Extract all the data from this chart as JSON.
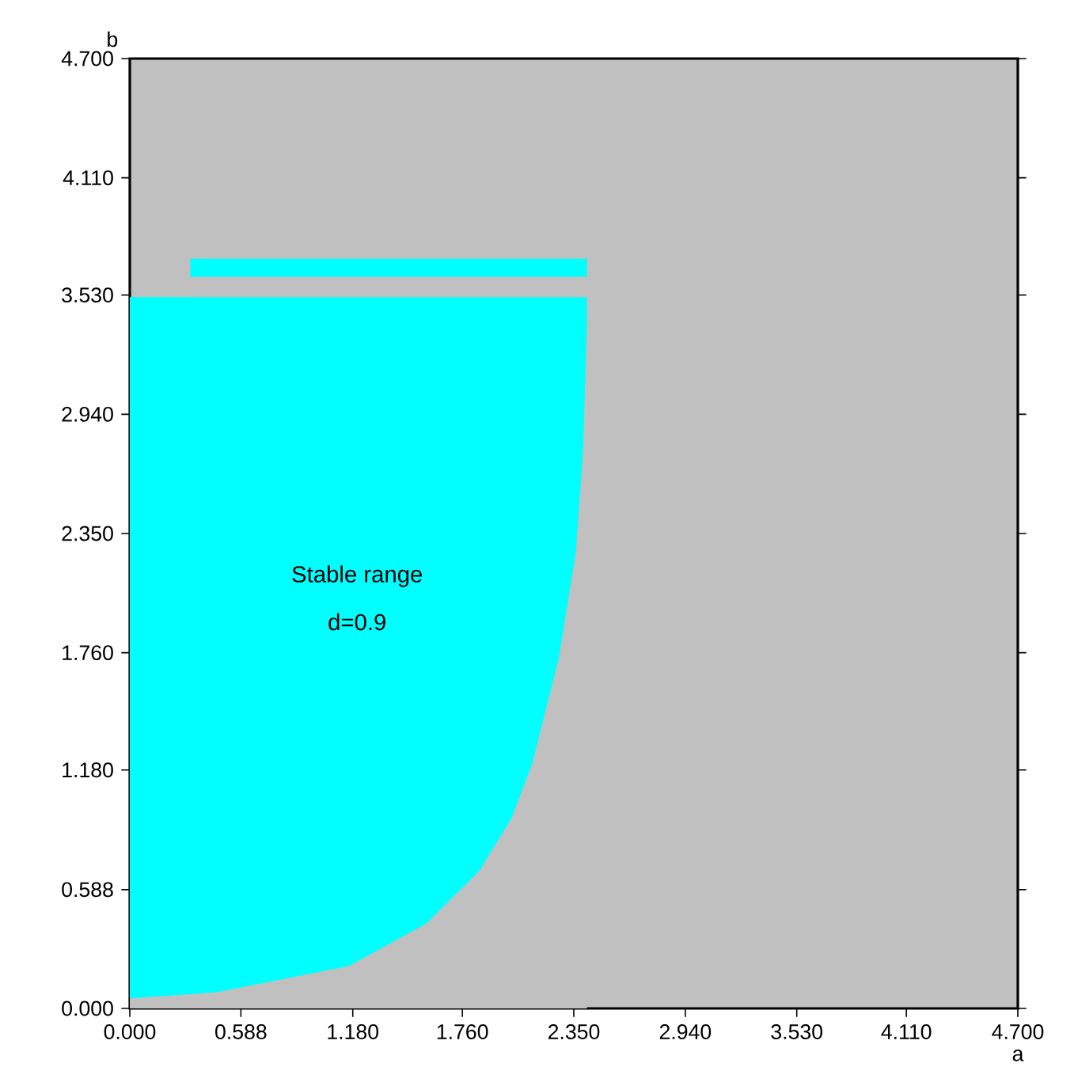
{
  "chart_data": {
    "type": "area",
    "stacked": true,
    "xlabel": "a",
    "ylabel": "b",
    "xlim": [
      0,
      4.7
    ],
    "ylim": [
      0,
      4.7
    ],
    "xticks": [
      {
        "value": 0,
        "label": "0.000"
      },
      {
        "value": 0.588,
        "label": "0.588"
      },
      {
        "value": 1.18,
        "label": "1.180"
      },
      {
        "value": 1.76,
        "label": "1.760"
      },
      {
        "value": 2.35,
        "label": "2.350"
      },
      {
        "value": 2.94,
        "label": "2.940"
      },
      {
        "value": 3.53,
        "label": "3.530"
      },
      {
        "value": 4.11,
        "label": "4.110"
      },
      {
        "value": 4.7,
        "label": "4.700"
      }
    ],
    "yticks": [
      {
        "value": 0,
        "label": "0.000"
      },
      {
        "value": 0.588,
        "label": "0.588"
      },
      {
        "value": 1.18,
        "label": "1.180"
      },
      {
        "value": 1.76,
        "label": "1.760"
      },
      {
        "value": 2.35,
        "label": "2.350"
      },
      {
        "value": 2.94,
        "label": "2.940"
      },
      {
        "value": 3.53,
        "label": "3.530"
      },
      {
        "value": 4.11,
        "label": "4.110"
      },
      {
        "value": 4.7,
        "label": "4.700"
      }
    ],
    "x": [
      0,
      0.32,
      0.46,
      1.16,
      1.57,
      1.85,
      2.02,
      2.13,
      2.27,
      2.36,
      2.4,
      2.42
    ],
    "series": [
      {
        "color": "#c0c0c0",
        "values": [
          0.05,
          0.07,
          0.08,
          0.21,
          0.42,
          0.68,
          0.94,
          1.21,
          1.73,
          2.25,
          2.77,
          3.42
        ]
      },
      {
        "color": "#00ffff",
        "values": [
          3.47,
          3.45,
          3.44,
          3.31,
          3.1,
          2.84,
          2.58,
          2.31,
          1.79,
          1.27,
          0.75,
          0.1
        ]
      },
      {
        "color": "#c0c0c0",
        "values": [
          null,
          0.1,
          0.1,
          0.1,
          0.1,
          0.1,
          0.1,
          0.1,
          0.1,
          0.1,
          0.1,
          0.1
        ]
      },
      {
        "color": "#00ffff",
        "values": [
          null,
          0.09,
          0.09,
          0.09,
          0.09,
          0.09,
          0.09,
          0.09,
          0.09,
          0.09,
          0.09,
          0.09
        ]
      }
    ],
    "annotations": [
      "Stable range",
      "d=0.9"
    ]
  }
}
